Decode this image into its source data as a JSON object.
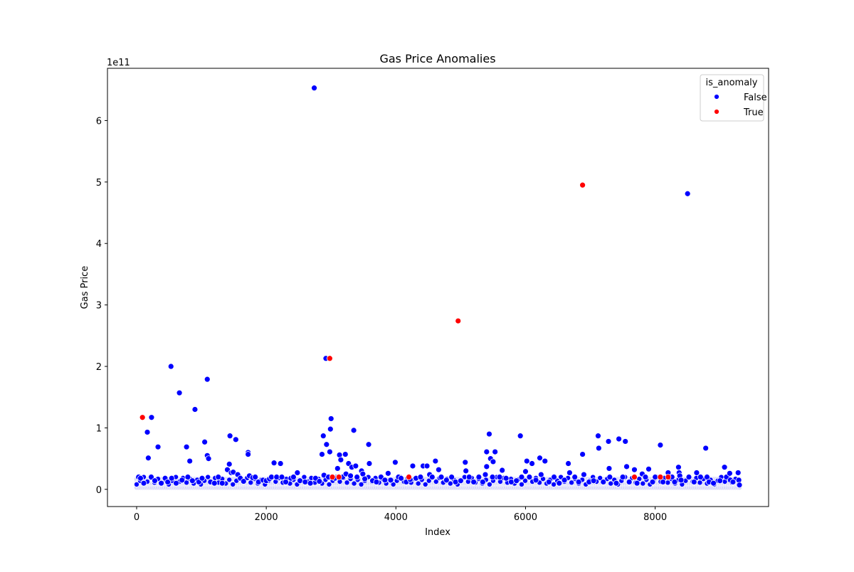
{
  "chart_data": {
    "type": "scatter",
    "title": "Gas Price Anomalies",
    "xlabel": "Index",
    "ylabel": "Gas Price",
    "y_offset_text": "1e11",
    "xlim": [
      -450,
      9750
    ],
    "ylim": [
      -0.28,
      6.85
    ],
    "x_ticks": [
      0,
      2000,
      4000,
      6000,
      8000
    ],
    "x_tick_labels": [
      "0",
      "2000",
      "4000",
      "6000",
      "8000"
    ],
    "y_ticks": [
      0,
      1,
      2,
      3,
      4,
      5,
      6
    ],
    "y_tick_labels": [
      "0",
      "1",
      "2",
      "3",
      "4",
      "5",
      "6"
    ],
    "y_unit_multiplier": 100000000000.0,
    "grid": false,
    "legend": {
      "title": "is_anomaly",
      "placement": "top-right",
      "entries": [
        {
          "label": "False",
          "color": "#0000ff"
        },
        {
          "label": "True",
          "color": "#ff0000"
        }
      ]
    },
    "series": [
      {
        "name": "False",
        "color": "#0000ff",
        "points": [
          [
            30,
            0.2
          ],
          [
            60,
            0.18
          ],
          [
            110,
            0.1
          ],
          [
            165,
            0.93
          ],
          [
            180,
            0.51
          ],
          [
            230,
            1.17
          ],
          [
            225,
            0.2
          ],
          [
            280,
            0.14
          ],
          [
            330,
            0.69
          ],
          [
            380,
            0.1
          ],
          [
            440,
            0.18
          ],
          [
            480,
            0.12
          ],
          [
            530,
            2.0
          ],
          [
            540,
            0.18
          ],
          [
            610,
            0.1
          ],
          [
            660,
            1.57
          ],
          [
            700,
            0.15
          ],
          [
            770,
            0.69
          ],
          [
            790,
            0.2
          ],
          [
            820,
            0.46
          ],
          [
            860,
            0.14
          ],
          [
            900,
            1.3
          ],
          [
            960,
            0.12
          ],
          [
            1010,
            0.18
          ],
          [
            1050,
            0.77
          ],
          [
            1090,
            1.79
          ],
          [
            1090,
            0.55
          ],
          [
            1110,
            0.5
          ],
          [
            1140,
            0.12
          ],
          [
            1200,
            0.1
          ],
          [
            1260,
            0.2
          ],
          [
            1320,
            0.1
          ],
          [
            1400,
            0.32
          ],
          [
            1430,
            0.41
          ],
          [
            1440,
            0.87
          ],
          [
            1460,
            0.27
          ],
          [
            1490,
            0.28
          ],
          [
            1530,
            0.81
          ],
          [
            1560,
            0.24
          ],
          [
            1600,
            0.18
          ],
          [
            1650,
            0.13
          ],
          [
            1720,
            0.6
          ],
          [
            1720,
            0.57
          ],
          [
            1740,
            0.22
          ],
          [
            1790,
            0.19
          ],
          [
            1830,
            0.2
          ],
          [
            1880,
            0.12
          ],
          [
            1950,
            0.15
          ],
          [
            2000,
            0.14
          ],
          [
            2050,
            0.17
          ],
          [
            2080,
            0.2
          ],
          [
            2120,
            0.43
          ],
          [
            2160,
            0.2
          ],
          [
            2220,
            0.42
          ],
          [
            2240,
            0.2
          ],
          [
            2300,
            0.12
          ],
          [
            2380,
            0.18
          ],
          [
            2420,
            0.2
          ],
          [
            2480,
            0.27
          ],
          [
            2520,
            0.14
          ],
          [
            2600,
            0.12
          ],
          [
            2680,
            0.1
          ],
          [
            2740,
            6.53
          ],
          [
            2760,
            0.18
          ],
          [
            2820,
            0.13
          ],
          [
            2860,
            0.57
          ],
          [
            2880,
            0.87
          ],
          [
            2890,
            0.23
          ],
          [
            2920,
            2.13
          ],
          [
            2930,
            0.73
          ],
          [
            2960,
            0.2
          ],
          [
            2980,
            0.61
          ],
          [
            2990,
            0.98
          ],
          [
            3000,
            1.15
          ],
          [
            3060,
            0.18
          ],
          [
            3100,
            0.34
          ],
          [
            3130,
            0.56
          ],
          [
            3150,
            0.48
          ],
          [
            3180,
            0.2
          ],
          [
            3220,
            0.57
          ],
          [
            3230,
            0.25
          ],
          [
            3270,
            0.42
          ],
          [
            3300,
            0.22
          ],
          [
            3320,
            0.36
          ],
          [
            3350,
            0.96
          ],
          [
            3380,
            0.38
          ],
          [
            3400,
            0.2
          ],
          [
            3470,
            0.3
          ],
          [
            3490,
            0.25
          ],
          [
            3520,
            0.17
          ],
          [
            3580,
            0.73
          ],
          [
            3590,
            0.42
          ],
          [
            3640,
            0.14
          ],
          [
            3700,
            0.12
          ],
          [
            3770,
            0.2
          ],
          [
            3830,
            0.15
          ],
          [
            3880,
            0.26
          ],
          [
            3920,
            0.15
          ],
          [
            3990,
            0.44
          ],
          [
            4040,
            0.2
          ],
          [
            4080,
            0.18
          ],
          [
            4160,
            0.12
          ],
          [
            4220,
            0.16
          ],
          [
            4260,
            0.38
          ],
          [
            4310,
            0.18
          ],
          [
            4380,
            0.2
          ],
          [
            4420,
            0.38
          ],
          [
            4480,
            0.38
          ],
          [
            4520,
            0.24
          ],
          [
            4560,
            0.2
          ],
          [
            4610,
            0.46
          ],
          [
            4660,
            0.32
          ],
          [
            4700,
            0.2
          ],
          [
            4780,
            0.15
          ],
          [
            4860,
            0.2
          ],
          [
            4920,
            0.12
          ],
          [
            5000,
            0.14
          ],
          [
            5070,
            0.44
          ],
          [
            5080,
            0.3
          ],
          [
            5130,
            0.2
          ],
          [
            5200,
            0.12
          ],
          [
            5280,
            0.2
          ],
          [
            5340,
            0.12
          ],
          [
            5380,
            0.24
          ],
          [
            5400,
            0.61
          ],
          [
            5400,
            0.37
          ],
          [
            5440,
            0.9
          ],
          [
            5460,
            0.5
          ],
          [
            5490,
            0.2
          ],
          [
            5500,
            0.45
          ],
          [
            5530,
            0.61
          ],
          [
            5600,
            0.2
          ],
          [
            5640,
            0.31
          ],
          [
            5700,
            0.18
          ],
          [
            5780,
            0.12
          ],
          [
            5860,
            0.14
          ],
          [
            5920,
            0.87
          ],
          [
            5940,
            0.2
          ],
          [
            6000,
            0.29
          ],
          [
            6020,
            0.46
          ],
          [
            6060,
            0.2
          ],
          [
            6100,
            0.42
          ],
          [
            6160,
            0.15
          ],
          [
            6220,
            0.51
          ],
          [
            6240,
            0.24
          ],
          [
            6300,
            0.46
          ],
          [
            6360,
            0.12
          ],
          [
            6440,
            0.2
          ],
          [
            6520,
            0.1
          ],
          [
            6600,
            0.15
          ],
          [
            6660,
            0.42
          ],
          [
            6680,
            0.27
          ],
          [
            6760,
            0.2
          ],
          [
            6820,
            0.12
          ],
          [
            6880,
            0.57
          ],
          [
            6900,
            0.24
          ],
          [
            6980,
            0.12
          ],
          [
            7050,
            0.14
          ],
          [
            7120,
            0.87
          ],
          [
            7130,
            0.67
          ],
          [
            7200,
            0.12
          ],
          [
            7280,
            0.78
          ],
          [
            7290,
            0.34
          ],
          [
            7300,
            0.2
          ],
          [
            7400,
            0.1
          ],
          [
            7440,
            0.82
          ],
          [
            7500,
            0.2
          ],
          [
            7540,
            0.78
          ],
          [
            7560,
            0.37
          ],
          [
            7600,
            0.12
          ],
          [
            7680,
            0.32
          ],
          [
            7720,
            0.1
          ],
          [
            7800,
            0.25
          ],
          [
            7850,
            0.2
          ],
          [
            7900,
            0.33
          ],
          [
            7960,
            0.12
          ],
          [
            8000,
            0.2
          ],
          [
            8080,
            0.72
          ],
          [
            8120,
            0.12
          ],
          [
            8200,
            0.27
          ],
          [
            8260,
            0.2
          ],
          [
            8300,
            0.12
          ],
          [
            8360,
            0.36
          ],
          [
            8370,
            0.27
          ],
          [
            8380,
            0.22
          ],
          [
            8400,
            0.15
          ],
          [
            8500,
            4.81
          ],
          [
            8520,
            0.2
          ],
          [
            8600,
            0.12
          ],
          [
            8640,
            0.27
          ],
          [
            8700,
            0.2
          ],
          [
            8780,
            0.67
          ],
          [
            8800,
            0.2
          ],
          [
            8830,
            0.12
          ],
          [
            8900,
            0.1
          ],
          [
            9000,
            0.14
          ],
          [
            9070,
            0.36
          ],
          [
            9100,
            0.2
          ],
          [
            9150,
            0.26
          ],
          [
            9160,
            0.15
          ],
          [
            9200,
            0.12
          ],
          [
            9280,
            0.27
          ],
          [
            9290,
            0.15
          ],
          [
            9300,
            0.07
          ]
        ]
      },
      {
        "name": "True",
        "color": "#ff0000",
        "points": [
          [
            90,
            1.17
          ],
          [
            2980,
            2.13
          ],
          [
            3020,
            0.2
          ],
          [
            3120,
            0.2
          ],
          [
            4200,
            0.2
          ],
          [
            4960,
            2.74
          ],
          [
            6880,
            4.95
          ],
          [
            7680,
            0.2
          ],
          [
            8080,
            0.2
          ],
          [
            8200,
            0.2
          ]
        ]
      }
    ],
    "baseline_band": {
      "color": "#d8d8f8",
      "x_range": [
        0,
        9300
      ],
      "y_values": [
        0.03,
        0.06,
        0.09,
        0.12,
        0.15
      ]
    }
  }
}
